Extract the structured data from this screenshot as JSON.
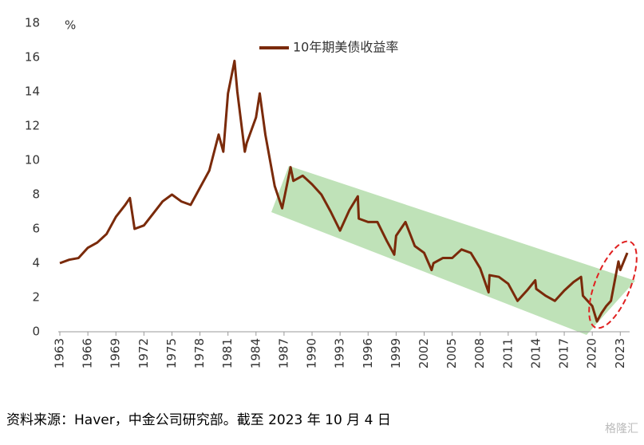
{
  "chart_data": {
    "type": "line",
    "unit_label": "%",
    "x": [
      1963,
      1964,
      1965,
      1966,
      1967,
      1968,
      1969,
      1970,
      1970.5,
      1971,
      1972,
      1973,
      1974,
      1975,
      1976,
      1977,
      1978,
      1979,
      1980,
      1980.5,
      1981,
      1981.7,
      1982,
      1982.8,
      1983,
      1984,
      1984.4,
      1985,
      1986,
      1986.8,
      1987.7,
      1988,
      1989,
      1990,
      1991,
      1992,
      1993,
      1994,
      1994.9,
      1995,
      1996,
      1997,
      1998,
      1998.8,
      1999,
      2000,
      2001,
      2002,
      2002.8,
      2003,
      2004,
      2005,
      2006,
      2007,
      2008,
      2008.9,
      2009,
      2010,
      2011,
      2012,
      2013,
      2013.9,
      2014,
      2015,
      2016,
      2017,
      2018,
      2018.8,
      2019,
      2020,
      2020.5,
      2021,
      2021.5,
      2022,
      2022.8,
      2023,
      2023.75
    ],
    "series": [
      {
        "name": "10年期美债收益率",
        "color": "#7a2a0a",
        "values": [
          4.0,
          4.2,
          4.3,
          4.9,
          5.2,
          5.7,
          6.7,
          7.4,
          7.8,
          6.0,
          6.2,
          6.9,
          7.6,
          8.0,
          7.6,
          7.4,
          8.4,
          9.4,
          11.5,
          10.5,
          13.9,
          15.8,
          14.0,
          10.5,
          11.0,
          12.5,
          13.9,
          11.5,
          8.5,
          7.2,
          9.6,
          8.8,
          9.1,
          8.6,
          8.0,
          7.0,
          5.9,
          7.1,
          7.9,
          6.6,
          6.4,
          6.4,
          5.3,
          4.5,
          5.6,
          6.4,
          5.0,
          4.6,
          3.6,
          4.0,
          4.3,
          4.3,
          4.8,
          4.6,
          3.7,
          2.3,
          3.3,
          3.2,
          2.8,
          1.8,
          2.4,
          3.0,
          2.5,
          2.1,
          1.8,
          2.4,
          2.9,
          3.2,
          2.1,
          1.5,
          0.6,
          1.1,
          1.5,
          1.8,
          4.1,
          3.6,
          4.6
        ]
      }
    ],
    "xlim": [
      1963,
      2024
    ],
    "xticks": [
      1963,
      1966,
      1969,
      1972,
      1975,
      1978,
      1981,
      1984,
      1987,
      1990,
      1993,
      1996,
      1999,
      2002,
      2005,
      2008,
      2011,
      2014,
      2017,
      2020,
      2023
    ],
    "ylim": [
      0,
      18
    ],
    "yticks": [
      0,
      2,
      4,
      6,
      8,
      10,
      12,
      14,
      16,
      18
    ],
    "grid": false,
    "source": "资料来源：Haver，中金公司研究部。截至 2023 年 10 月 4 日",
    "watermark": "格隆汇"
  }
}
